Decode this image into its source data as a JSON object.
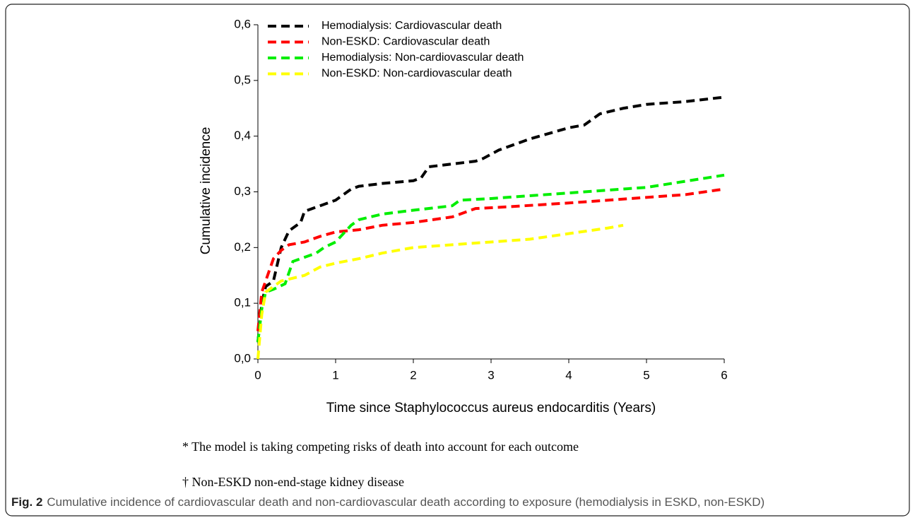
{
  "chart_data": {
    "type": "line",
    "xlabel": "Time since Staphylococcus aureus endocarditis (Years)",
    "ylabel": "Cumulative incidence",
    "xlim": [
      0,
      6
    ],
    "xticks": [
      0,
      1,
      2,
      3,
      4,
      5,
      6
    ],
    "ylim": [
      0,
      0.6
    ],
    "yticks": [
      {
        "value": 0,
        "label": "0,0"
      },
      {
        "value": 0.1,
        "label": "0,1"
      },
      {
        "value": 0.2,
        "label": "0,2"
      },
      {
        "value": 0.3,
        "label": "0,3"
      },
      {
        "value": 0.4,
        "label": "0,4"
      },
      {
        "value": 0.5,
        "label": "0,5"
      },
      {
        "value": 0.6,
        "label": "0,6"
      }
    ],
    "grid": false,
    "legend": "upper left",
    "series": [
      {
        "name": "Hemodialysis: Cardiovascular death",
        "color": "#000000",
        "x": [
          0,
          0.05,
          0.1,
          0.2,
          0.3,
          0.4,
          0.5,
          0.55,
          0.6,
          0.8,
          1,
          1.2,
          1.3,
          1.6,
          2,
          2.1,
          2.2,
          2.5,
          2.8,
          2.9,
          3.1,
          3.5,
          4,
          4.2,
          4.4,
          4.7,
          5,
          5.5,
          6
        ],
        "values": [
          0.03,
          0.1,
          0.13,
          0.14,
          0.2,
          0.23,
          0.24,
          0.245,
          0.265,
          0.275,
          0.285,
          0.305,
          0.31,
          0.315,
          0.32,
          0.325,
          0.345,
          0.35,
          0.355,
          0.36,
          0.375,
          0.395,
          0.415,
          0.42,
          0.44,
          0.45,
          0.457,
          0.462,
          0.47
        ]
      },
      {
        "name": "Non-ESKD: Cardiovascular death",
        "color": "#ff0000",
        "x": [
          0,
          0.05,
          0.1,
          0.2,
          0.3,
          0.4,
          0.6,
          0.8,
          1,
          1.3,
          1.6,
          2,
          2.5,
          2.8,
          3.2,
          4,
          5,
          5.5,
          6
        ],
        "values": [
          0.05,
          0.12,
          0.14,
          0.18,
          0.195,
          0.205,
          0.21,
          0.22,
          0.228,
          0.232,
          0.24,
          0.245,
          0.255,
          0.27,
          0.273,
          0.28,
          0.29,
          0.295,
          0.305
        ]
      },
      {
        "name": "Hemodialysis: Non-cardiovascular death",
        "color": "#00ee00",
        "x": [
          0,
          0.05,
          0.1,
          0.2,
          0.35,
          0.45,
          0.55,
          0.75,
          0.85,
          1,
          1.2,
          1.3,
          1.6,
          2,
          2.5,
          2.6,
          3,
          4,
          5,
          6
        ],
        "values": [
          0.03,
          0.09,
          0.12,
          0.125,
          0.135,
          0.175,
          0.18,
          0.19,
          0.2,
          0.21,
          0.24,
          0.25,
          0.26,
          0.267,
          0.275,
          0.285,
          0.288,
          0.298,
          0.308,
          0.33
        ]
      },
      {
        "name": "Non-ESKD: Non-cardiovascular death",
        "color": "#ffff00",
        "x": [
          0,
          0.05,
          0.1,
          0.3,
          0.6,
          0.8,
          1,
          1.3,
          1.6,
          2,
          2.5,
          3,
          3.5,
          4,
          4.5,
          4.7
        ],
        "values": [
          0,
          0.08,
          0.12,
          0.14,
          0.15,
          0.165,
          0.172,
          0.18,
          0.19,
          0.2,
          0.205,
          0.21,
          0.215,
          0.225,
          0.235,
          0.24
        ]
      }
    ]
  },
  "notes": [
    "* The model is taking competing risks of death into account for each outcome",
    "† Non-ESKD non-end-stage kidney disease"
  ],
  "caption": {
    "label": "Fig. 2",
    "text": "Cumulative incidence of cardiovascular death and non-cardiovascular death according to exposure (hemodialysis in ESKD, non-ESKD)"
  }
}
